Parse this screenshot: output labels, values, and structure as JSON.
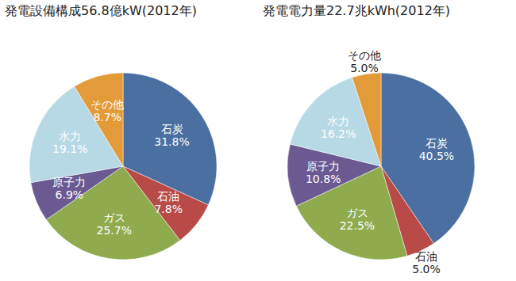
{
  "chart_data": [
    {
      "type": "pie",
      "title": "発電設備構成56.8億kW(2012年)",
      "categories": [
        "石炭",
        "石油",
        "ガス",
        "原子力",
        "水力",
        "その他"
      ],
      "values": [
        31.8,
        7.8,
        25.7,
        6.9,
        19.1,
        8.7
      ],
      "value_labels": [
        "31.8%",
        "7.8%",
        "25.7%",
        "6.9%",
        "19.1%",
        "8.7%"
      ],
      "colors": [
        "#4a6fa0",
        "#b84a47",
        "#8fab4e",
        "#6b5a92",
        "#b7d9e6",
        "#e39b3a"
      ],
      "data_labels": true
    },
    {
      "type": "pie",
      "title": "発電電力量22.7兆kWh(2012年)",
      "categories": [
        "石炭",
        "石油",
        "ガス",
        "原子力",
        "水力",
        "その他"
      ],
      "values": [
        40.5,
        5.0,
        22.5,
        10.8,
        16.2,
        5.0
      ],
      "value_labels": [
        "40.5%",
        "5.0%",
        "22.5%",
        "10.8%",
        "16.2%",
        "5.0%"
      ],
      "colors": [
        "#4a6fa0",
        "#b84a47",
        "#8fab4e",
        "#6b5a92",
        "#b7d9e6",
        "#e39b3a"
      ],
      "data_labels": true
    }
  ]
}
